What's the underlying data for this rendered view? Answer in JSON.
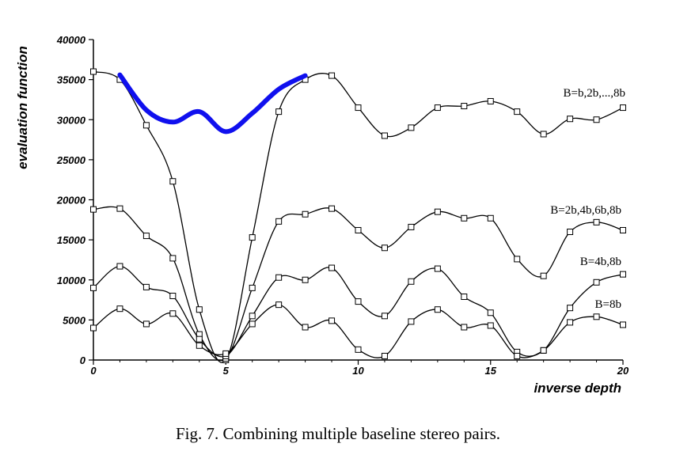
{
  "caption": "Fig. 7.   Combining multiple baseline stereo pairs.",
  "chart_data": {
    "type": "line",
    "xlabel": "inverse depth",
    "ylabel": "evaluation function",
    "xlim": [
      0,
      20
    ],
    "ylim": [
      0,
      40000
    ],
    "x_ticks": [
      0,
      5,
      10,
      15,
      20
    ],
    "y_ticks": [
      0,
      5000,
      10000,
      15000,
      20000,
      25000,
      30000,
      35000,
      40000
    ],
    "grid": false,
    "legend": "inline labels at right",
    "x": [
      0,
      1,
      2,
      3,
      4,
      5,
      6,
      7,
      8,
      9,
      10,
      11,
      12,
      13,
      14,
      15,
      16,
      17,
      18,
      19,
      20
    ],
    "series": [
      {
        "name": "B=b,2b,...,8b",
        "values": [
          36000,
          35000,
          29300,
          22300,
          6300,
          0,
          15300,
          31000,
          35000,
          35500,
          31500,
          28000,
          29000,
          31500,
          31700,
          32300,
          31000,
          28200,
          30100,
          30000,
          31500
        ]
      },
      {
        "name": "B=2b,4b,6b,8b",
        "values": [
          18800,
          18900,
          15500,
          12700,
          3200,
          200,
          9000,
          17300,
          18200,
          18900,
          16200,
          14000,
          16600,
          18500,
          17700,
          17700,
          12600,
          10500,
          16000,
          17200,
          16200
        ]
      },
      {
        "name": "B=4b,8b",
        "values": [
          9000,
          11700,
          9100,
          8000,
          2600,
          500,
          5500,
          10300,
          10000,
          11500,
          7300,
          5500,
          9800,
          11400,
          7900,
          5900,
          1000,
          1200,
          6500,
          9700,
          10700
        ]
      },
      {
        "name": "B=8b",
        "values": [
          4000,
          6400,
          4500,
          5800,
          1800,
          800,
          4500,
          6900,
          4100,
          4900,
          1300,
          500,
          4800,
          6300,
          4100,
          4300,
          500,
          1200,
          4700,
          5400,
          4400
        ]
      }
    ],
    "highlight": {
      "color": "#1010ee",
      "x": [
        1,
        2,
        3,
        4,
        5,
        6,
        7,
        8
      ],
      "values": [
        35600,
        31200,
        29700,
        31000,
        28500,
        30800,
        33800,
        35500
      ]
    }
  }
}
